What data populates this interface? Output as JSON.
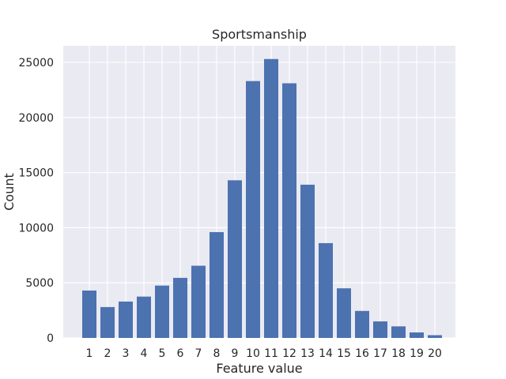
{
  "chart_data": {
    "type": "bar",
    "title": "Sportsmanship",
    "xlabel": "Feature value",
    "ylabel": "Count",
    "categories": [
      "1",
      "2",
      "3",
      "4",
      "5",
      "6",
      "7",
      "8",
      "9",
      "10",
      "11",
      "12",
      "13",
      "14",
      "15",
      "16",
      "17",
      "18",
      "19",
      "20"
    ],
    "values": [
      4300,
      2800,
      3300,
      3750,
      4750,
      5450,
      6550,
      9600,
      14300,
      23300,
      25300,
      23100,
      13900,
      8600,
      4500,
      2450,
      1500,
      1050,
      500,
      250
    ],
    "yticks": [
      0,
      5000,
      10000,
      15000,
      20000,
      25000
    ],
    "ylim": [
      0,
      26500
    ],
    "grid": true,
    "colors": {
      "bar": "#4c72b0",
      "background": "#eaeaf2",
      "grid": "#ffffff"
    }
  }
}
